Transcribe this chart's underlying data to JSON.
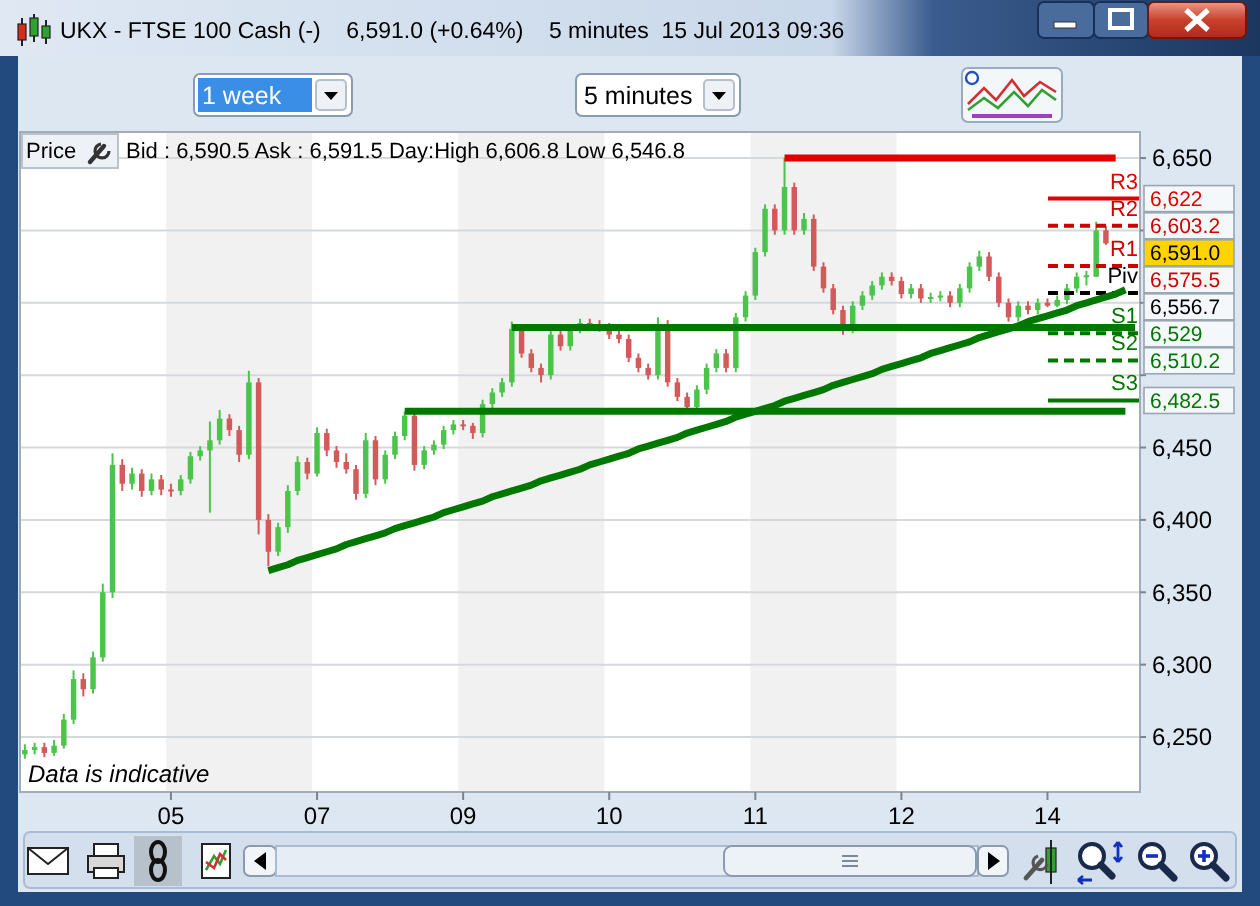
{
  "chart_data": {
    "type": "candlestick",
    "title": "UKX - FTSE 100 Cash (-)    6,591.0 (+0.64%)    5 minutes  15 Jul 2013 09:36",
    "subtitle": "Bid : 6,590.5 Ask : 6,591.5 Day:High 6,606.8 Low 6,546.8",
    "ylabel": "Price",
    "categories": [
      null,
      null,
      null,
      null,
      null,
      null,
      null,
      null,
      null,
      null,
      null,
      null,
      null,
      null,
      null,
      "05",
      null,
      null,
      null,
      null,
      null,
      null,
      null,
      null,
      null,
      null,
      null,
      null,
      null,
      null,
      "07",
      null,
      null,
      null,
      null,
      null,
      null,
      null,
      null,
      null,
      null,
      null,
      null,
      null,
      null,
      "09",
      null,
      null,
      null,
      null,
      null,
      null,
      null,
      null,
      null,
      null,
      null,
      null,
      null,
      null,
      "10",
      null,
      null,
      null,
      null,
      null,
      null,
      null,
      null,
      null,
      null,
      null,
      null,
      null,
      null,
      "11",
      null,
      null,
      null,
      null,
      null,
      null,
      null,
      null,
      null,
      null,
      null,
      null,
      null,
      null,
      "12",
      null,
      null,
      null,
      null,
      null,
      null,
      null,
      null,
      null,
      null,
      null,
      null,
      null,
      null,
      "14",
      null,
      null,
      null,
      null,
      null,
      null,
      null,
      null,
      null
    ],
    "ohlc": [
      [
        6238,
        6245,
        6235,
        6241
      ],
      [
        6241,
        6246,
        6238,
        6243
      ],
      [
        6243,
        6246,
        6236,
        6239
      ],
      [
        6239,
        6248,
        6237,
        6244
      ],
      [
        6244,
        6266,
        6242,
        6262
      ],
      [
        6262,
        6296,
        6259,
        6290
      ],
      [
        6290,
        6294,
        6278,
        6283
      ],
      [
        6283,
        6309,
        6280,
        6305
      ],
      [
        6305,
        6356,
        6302,
        6350
      ],
      [
        6350,
        6446,
        6346,
        6438
      ],
      [
        6438,
        6442,
        6420,
        6425
      ],
      [
        6425,
        6436,
        6421,
        6432
      ],
      [
        6432,
        6435,
        6416,
        6420
      ],
      [
        6420,
        6432,
        6417,
        6428
      ],
      [
        6428,
        6431,
        6417,
        6421
      ],
      [
        6421,
        6425,
        6416,
        6420
      ],
      [
        6420,
        6431,
        6417,
        6428
      ],
      [
        6428,
        6447,
        6425,
        6444
      ],
      [
        6444,
        6451,
        6441,
        6448
      ],
      [
        6448,
        6468,
        6405,
        6455
      ],
      [
        6455,
        6476,
        6452,
        6470
      ],
      [
        6470,
        6473,
        6458,
        6462
      ],
      [
        6462,
        6465,
        6440,
        6445
      ],
      [
        6445,
        6503,
        6442,
        6495
      ],
      [
        6495,
        6498,
        6390,
        6400
      ],
      [
        6400,
        6404,
        6368,
        6378
      ],
      [
        6378,
        6398,
        6375,
        6395
      ],
      [
        6395,
        6424,
        6391,
        6420
      ],
      [
        6420,
        6444,
        6417,
        6440
      ],
      [
        6440,
        6443,
        6428,
        6432
      ],
      [
        6432,
        6464,
        6430,
        6460
      ],
      [
        6460,
        6463,
        6444,
        6448
      ],
      [
        6448,
        6451,
        6436,
        6440
      ],
      [
        6440,
        6446,
        6432,
        6435
      ],
      [
        6435,
        6438,
        6414,
        6418
      ],
      [
        6418,
        6460,
        6415,
        6455
      ],
      [
        6455,
        6458,
        6424,
        6428
      ],
      [
        6428,
        6448,
        6425,
        6445
      ],
      [
        6445,
        6461,
        6442,
        6458
      ],
      [
        6458,
        6475,
        6455,
        6472
      ],
      [
        6472,
        6474,
        6434,
        6438
      ],
      [
        6438,
        6451,
        6435,
        6448
      ],
      [
        6448,
        6455,
        6445,
        6452
      ],
      [
        6452,
        6465,
        6449,
        6462
      ],
      [
        6462,
        6469,
        6459,
        6466
      ],
      [
        6466,
        6469,
        6462,
        6465
      ],
      [
        6465,
        6467,
        6456,
        6460
      ],
      [
        6460,
        6483,
        6457,
        6480
      ],
      [
        6480,
        6491,
        6477,
        6488
      ],
      [
        6488,
        6498,
        6485,
        6495
      ],
      [
        6495,
        6537,
        6492,
        6532
      ],
      [
        6532,
        6535,
        6512,
        6515
      ],
      [
        6515,
        6518,
        6502,
        6505
      ],
      [
        6505,
        6508,
        6495,
        6500
      ],
      [
        6500,
        6531,
        6497,
        6528
      ],
      [
        6528,
        6531,
        6517,
        6520
      ],
      [
        6520,
        6535,
        6517,
        6532
      ],
      [
        6532,
        6539,
        6529,
        6536
      ],
      [
        6536,
        6539,
        6532,
        6535
      ],
      [
        6535,
        6538,
        6530,
        6533
      ],
      [
        6533,
        6536,
        6525,
        6528
      ],
      [
        6528,
        6531,
        6522,
        6525
      ],
      [
        6525,
        6528,
        6509,
        6512
      ],
      [
        6512,
        6515,
        6502,
        6505
      ],
      [
        6505,
        6508,
        6497,
        6500
      ],
      [
        6500,
        6540,
        6497,
        6535
      ],
      [
        6535,
        6538,
        6492,
        6495
      ],
      [
        6495,
        6498,
        6482,
        6485
      ],
      [
        6485,
        6488,
        6474,
        6478
      ],
      [
        6478,
        6493,
        6475,
        6490
      ],
      [
        6490,
        6508,
        6487,
        6505
      ],
      [
        6505,
        6518,
        6502,
        6515
      ],
      [
        6515,
        6518,
        6502,
        6505
      ],
      [
        6505,
        6543,
        6502,
        6540
      ],
      [
        6540,
        6558,
        6537,
        6555
      ],
      [
        6555,
        6588,
        6552,
        6585
      ],
      [
        6585,
        6618,
        6582,
        6615
      ],
      [
        6615,
        6618,
        6597,
        6600
      ],
      [
        6600,
        6650,
        6597,
        6630
      ],
      [
        6630,
        6633,
        6597,
        6600
      ],
      [
        6600,
        6612,
        6597,
        6608
      ],
      [
        6608,
        6611,
        6572,
        6575
      ],
      [
        6575,
        6578,
        6557,
        6560
      ],
      [
        6560,
        6563,
        6542,
        6545
      ],
      [
        6545,
        6548,
        6528,
        6532
      ],
      [
        6532,
        6551,
        6529,
        6548
      ],
      [
        6548,
        6558,
        6545,
        6555
      ],
      [
        6555,
        6565,
        6552,
        6562
      ],
      [
        6562,
        6571,
        6559,
        6568
      ],
      [
        6568,
        6571,
        6562,
        6565
      ],
      [
        6565,
        6568,
        6553,
        6556
      ],
      [
        6556,
        6563,
        6553,
        6560
      ],
      [
        6560,
        6563,
        6550,
        6553
      ],
      [
        6553,
        6557,
        6550,
        6554
      ],
      [
        6554,
        6558,
        6551,
        6555
      ],
      [
        6555,
        6558,
        6547,
        6550
      ],
      [
        6550,
        6563,
        6547,
        6560
      ],
      [
        6560,
        6578,
        6557,
        6575
      ],
      [
        6575,
        6586,
        6572,
        6582
      ],
      [
        6582,
        6585,
        6565,
        6568
      ],
      [
        6568,
        6571,
        6547,
        6550
      ],
      [
        6550,
        6553,
        6537,
        6540
      ],
      [
        6540,
        6551,
        6537,
        6548
      ],
      [
        6548,
        6551,
        6542,
        6545
      ],
      [
        6545,
        6553,
        6542,
        6550
      ],
      [
        6550,
        6553,
        6547,
        6548
      ],
      [
        6548,
        6555,
        6547,
        6552
      ],
      [
        6552,
        6563,
        6549,
        6560
      ],
      [
        6560,
        6571,
        6557,
        6568
      ],
      [
        6568,
        6572,
        6562,
        6569
      ],
      [
        6568,
        6606,
        6568,
        6600
      ],
      [
        6600,
        6603,
        6590,
        6591
      ],
      null,
      null,
      null
    ],
    "colors": [
      "#4cc44c",
      "#4cc44c",
      "#d25a5a",
      "#4cc44c",
      "#4cc44c",
      "#4cc44c",
      "#d25a5a",
      "#4cc44c",
      "#4cc44c",
      "#4cc44c",
      "#d25a5a",
      "#4cc44c",
      "#d25a5a",
      "#4cc44c",
      "#d25a5a",
      "#d25a5a",
      "#4cc44c",
      "#4cc44c",
      "#4cc44c",
      "#4cc44c",
      "#4cc44c",
      "#d25a5a",
      "#d25a5a",
      "#4cc44c",
      "#d25a5a",
      "#d25a5a",
      "#4cc44c",
      "#4cc44c",
      "#4cc44c",
      "#d25a5a",
      "#4cc44c",
      "#d25a5a",
      "#d25a5a",
      "#d25a5a",
      "#d25a5a",
      "#4cc44c",
      "#d25a5a",
      "#4cc44c",
      "#4cc44c",
      "#4cc44c",
      "#d25a5a",
      "#4cc44c",
      "#4cc44c",
      "#4cc44c",
      "#4cc44c",
      "#d25a5a",
      "#d25a5a",
      "#4cc44c",
      "#4cc44c",
      "#4cc44c",
      "#4cc44c",
      "#d25a5a",
      "#d25a5a",
      "#d25a5a",
      "#4cc44c",
      "#d25a5a",
      "#4cc44c",
      "#4cc44c",
      "#d25a5a",
      "#d25a5a",
      "#d25a5a",
      "#d25a5a",
      "#d25a5a",
      "#d25a5a",
      "#d25a5a",
      "#4cc44c",
      "#d25a5a",
      "#d25a5a",
      "#d25a5a",
      "#4cc44c",
      "#4cc44c",
      "#4cc44c",
      "#d25a5a",
      "#4cc44c",
      "#4cc44c",
      "#4cc44c",
      "#4cc44c",
      "#d25a5a",
      "#4cc44c",
      "#d25a5a",
      "#4cc44c",
      "#d25a5a",
      "#d25a5a",
      "#d25a5a",
      "#d25a5a",
      "#4cc44c",
      "#4cc44c",
      "#4cc44c",
      "#4cc44c",
      "#d25a5a",
      "#d25a5a",
      "#4cc44c",
      "#d25a5a",
      "#4cc44c",
      "#4cc44c",
      "#d25a5a",
      "#4cc44c",
      "#4cc44c",
      "#4cc44c",
      "#d25a5a",
      "#d25a5a",
      "#d25a5a",
      "#4cc44c",
      "#d25a5a",
      "#4cc44c",
      "#d25a5a",
      "#4cc44c",
      "#4cc44c",
      "#4cc44c",
      "#4cc44c",
      "#4cc44c",
      "#d25a5a",
      null,
      null,
      null
    ],
    "series": [
      {
        "type": "line",
        "color": "#e00000",
        "values": [
          null,
          null,
          null,
          null,
          null,
          null,
          null,
          null,
          null,
          null,
          null,
          null,
          null,
          null,
          null,
          null,
          null,
          null,
          null,
          null,
          null,
          null,
          null,
          null,
          null,
          null,
          null,
          null,
          null,
          null,
          null,
          null,
          null,
          null,
          null,
          null,
          null,
          null,
          null,
          null,
          null,
          null,
          null,
          null,
          null,
          null,
          null,
          null,
          null,
          null,
          null,
          null,
          null,
          null,
          null,
          null,
          null,
          null,
          null,
          null,
          null,
          null,
          null,
          null,
          null,
          null,
          null,
          null,
          null,
          null,
          null,
          null,
          null,
          null,
          null,
          null,
          null,
          null,
          6650,
          6650,
          6650,
          6650,
          6650,
          6650,
          6650,
          6650,
          6650,
          6650,
          6650,
          6650,
          6650,
          6650,
          6650,
          6650,
          6650,
          6650,
          6650,
          6650,
          6650,
          6650,
          6650,
          6650,
          6650,
          6650,
          6650,
          6650,
          6650,
          6650,
          6650,
          6650,
          6650,
          6650,
          6650,
          null,
          null
        ]
      },
      {
        "type": "line",
        "color": "#007800",
        "values": [
          null,
          null,
          null,
          null,
          null,
          null,
          null,
          null,
          null,
          null,
          null,
          null,
          null,
          null,
          null,
          null,
          null,
          null,
          null,
          null,
          null,
          null,
          null,
          null,
          null,
          null,
          null,
          null,
          null,
          null,
          null,
          null,
          null,
          null,
          null,
          null,
          null,
          null,
          null,
          null,
          null,
          null,
          null,
          null,
          null,
          null,
          null,
          null,
          null,
          null,
          6533,
          6533,
          6533,
          6533,
          6533,
          6533,
          6533,
          6533,
          6533,
          6533,
          6533,
          6533,
          6533,
          6533,
          6533,
          6533,
          6533,
          6533,
          6533,
          6533,
          6533,
          6533,
          6533,
          6533,
          6533,
          6533,
          6533,
          6533,
          6533,
          6533,
          6533,
          6533,
          6533,
          6533,
          6533,
          6533,
          6533,
          6533,
          6533,
          6533,
          6533,
          6533,
          6533,
          6533,
          6533,
          6533,
          6533,
          6533,
          6533,
          6533,
          6533,
          6533,
          6533,
          6533,
          6533,
          6533,
          6533,
          6533,
          6533,
          6533,
          6533,
          6533,
          6533,
          6533,
          6533
        ]
      },
      {
        "type": "line",
        "color": "#007800",
        "values": [
          null,
          null,
          null,
          null,
          null,
          null,
          null,
          null,
          null,
          null,
          null,
          null,
          null,
          null,
          null,
          null,
          null,
          null,
          null,
          null,
          null,
          null,
          null,
          null,
          null,
          null,
          null,
          null,
          null,
          null,
          null,
          null,
          null,
          null,
          null,
          null,
          null,
          null,
          null,
          6475,
          6475,
          6475,
          6475,
          6475,
          6475,
          6475,
          6475,
          6475,
          6475,
          6475,
          6475,
          6475,
          6475,
          6475,
          6475,
          6475,
          6475,
          6475,
          6475,
          6475,
          6475,
          6475,
          6475,
          6475,
          6475,
          6475,
          6475,
          6475,
          6475,
          6475,
          6475,
          6475,
          6475,
          6475,
          6475,
          6475,
          6475,
          6475,
          6475,
          6475,
          6475,
          6475,
          6475,
          6475,
          6475,
          6475,
          6475,
          6475,
          6475,
          6475,
          6475,
          6475,
          6475,
          6475,
          6475,
          6475,
          6475,
          6475,
          6475,
          6475,
          6475,
          6475,
          6475,
          6475,
          6475,
          6475,
          6475,
          6475,
          6475,
          6475,
          6475,
          6475,
          6475,
          6475,
          null
        ]
      },
      {
        "type": "line",
        "color": "#007800",
        "values": [
          null,
          null,
          null,
          null,
          null,
          null,
          null,
          null,
          null,
          null,
          null,
          null,
          null,
          null,
          null,
          null,
          null,
          null,
          null,
          null,
          null,
          null,
          null,
          null,
          null,
          6365,
          6367,
          6369,
          6372,
          6374,
          6376,
          6378,
          6380,
          6383,
          6385,
          6387,
          6389,
          6391,
          6394,
          6396,
          6398,
          6400,
          6402,
          6405,
          6407,
          6409,
          6411,
          6413,
          6416,
          6418,
          6420,
          6422,
          6424,
          6427,
          6429,
          6431,
          6433,
          6435,
          6438,
          6440,
          6442,
          6444,
          6446,
          6449,
          6451,
          6453,
          6455,
          6457,
          6460,
          6462,
          6464,
          6466,
          6468,
          6471,
          6473,
          6475,
          6477,
          6479,
          6482,
          6484,
          6486,
          6488,
          6490,
          6493,
          6495,
          6497,
          6499,
          6501,
          6504,
          6506,
          6508,
          6510,
          6512,
          6515,
          6517,
          6519,
          6521,
          6523,
          6526,
          6528,
          6530,
          6532,
          6534,
          6537,
          6539,
          6541,
          6543,
          6545,
          6548,
          6550,
          6552,
          6554,
          6556,
          6559,
          null
        ]
      }
    ],
    "ylim": [
      6212,
      6668
    ],
    "yticks": [
      {
        "value": 6250,
        "label": "6,250"
      },
      {
        "value": 6300,
        "label": "6,300"
      },
      {
        "value": 6350,
        "label": "6,350"
      },
      {
        "value": 6400,
        "label": "6,400"
      },
      {
        "value": 6450,
        "label": "6,450"
      },
      {
        "value": 6500,
        "label": null
      },
      {
        "value": 6550,
        "label": null
      },
      {
        "value": 6600,
        "label": null
      },
      {
        "value": 6650,
        "label": "6,650"
      }
    ],
    "grid": "y",
    "bands": [
      {
        "axis": "x",
        "from": "05",
        "to": "07",
        "color": "#f1f1f1"
      },
      {
        "axis": "x",
        "from": "09",
        "to": "10",
        "color": "#f1f1f1"
      },
      {
        "axis": "x",
        "from": "11",
        "to": "12",
        "color": "#f1f1f1"
      }
    ],
    "ref_lines": [
      {
        "axis": "y",
        "value": 6622,
        "label": "R3",
        "color": "#e00000",
        "line_style": "solid"
      },
      {
        "axis": "y",
        "value": 6603.2,
        "label": "R2",
        "color": "#d00000",
        "line_style": "dashed"
      },
      {
        "axis": "y",
        "value": 6575.5,
        "label": "R1",
        "color": "#d00000",
        "line_style": "dashed"
      },
      {
        "axis": "y",
        "value": 6556.7,
        "label": "Piv",
        "color": "#000000",
        "line_style": "dashed"
      },
      {
        "axis": "y",
        "value": 6529,
        "label": "S1",
        "color": "#007800",
        "line_style": "dashed"
      },
      {
        "axis": "y",
        "value": 6510.2,
        "label": "S2",
        "color": "#007800",
        "line_style": "dashed"
      },
      {
        "axis": "y",
        "value": 6482.5,
        "label": "S3",
        "color": "#007800",
        "line_style": "solid"
      }
    ],
    "annotations": [
      "1 week",
      "5 minutes",
      "Data is indicative",
      "6,622",
      "6,603.2",
      "6,591.0",
      "6,575.5",
      "6,556.7",
      "6,529",
      "6,510.2",
      "6,482.5"
    ]
  }
}
